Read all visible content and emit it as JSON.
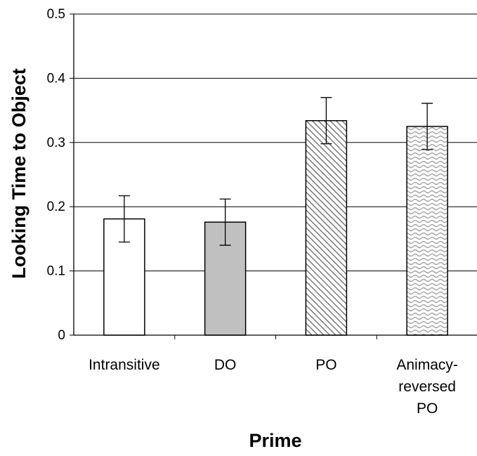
{
  "chart_data": {
    "type": "bar",
    "title": "",
    "xlabel": "Prime",
    "ylabel": "Looking Time to Object",
    "ylim": [
      0,
      0.5
    ],
    "yticks": [
      "0",
      "0.1",
      "0.2",
      "0.3",
      "0.4",
      "0.5"
    ],
    "grid": true,
    "categories": [
      [
        "Intransitive"
      ],
      [
        "DO"
      ],
      [
        "PO"
      ],
      [
        "Animacy-",
        "reversed",
        "PO"
      ]
    ],
    "values": [
      0.181,
      0.176,
      0.334,
      0.325
    ],
    "error_low": [
      0.145,
      0.14,
      0.298,
      0.289
    ],
    "error_high": [
      0.217,
      0.212,
      0.37,
      0.361
    ],
    "fills": [
      "white",
      "gray",
      "diagonal-hatch",
      "wave-hatch"
    ],
    "colors": {
      "gray": "#c0c0c0",
      "hatch": "#808080",
      "outline": "#000000"
    }
  }
}
